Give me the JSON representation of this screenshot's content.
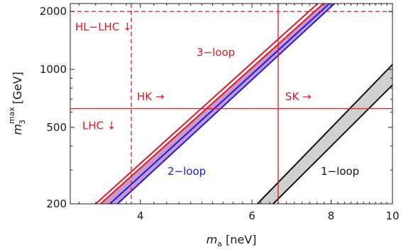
{
  "chart_data": {
    "type": "area",
    "title": "",
    "xlabel": {
      "var": "m",
      "sub": "a",
      "unit": "[neV]"
    },
    "ylabel": {
      "var": "m",
      "sub": "3",
      "sup": "max",
      "unit": "[GeV]"
    },
    "x_scale": "log",
    "y_scale": "log",
    "xlim": [
      3.1,
      10
    ],
    "ylim": [
      200,
      2200
    ],
    "xticks": [
      4,
      6,
      8,
      10
    ],
    "xtick_labels": [
      "4",
      "6",
      "8",
      "10"
    ],
    "yticks": [
      200,
      500,
      1000,
      2000
    ],
    "ytick_labels": [
      "200",
      "500",
      "1000",
      "2000"
    ],
    "bands": [
      {
        "name": "3-loop / 2-loop",
        "fill": "#c79ac9",
        "upper": {
          "label": "3−loop",
          "color": "#e8141f",
          "x": [
            3.46,
            7.78
          ],
          "y": [
            200,
            2200
          ]
        },
        "lower": {
          "label": "2−loop",
          "color": "#1a1aee",
          "x": [
            3.68,
            8.1
          ],
          "y": [
            200,
            2200
          ]
        },
        "outer_upper_color": "#e8141f",
        "outer_upper": {
          "x": [
            3.4,
            7.62
          ],
          "y": [
            200,
            2200
          ]
        },
        "outer_lower_color": "#1a1aee",
        "outer_lower": {
          "x": [
            3.58,
            7.95
          ],
          "y": [
            200,
            2200
          ]
        }
      },
      {
        "name": "1-loop",
        "fill": "#d0d0d0",
        "upper": {
          "label": "1−loop",
          "color": "#111111",
          "x": [
            6.12,
            10.0
          ],
          "y": [
            200,
            1060
          ]
        },
        "lower": {
          "label": "",
          "color": "#111111",
          "x": [
            6.48,
            10.0
          ],
          "y": [
            200,
            830
          ]
        }
      }
    ],
    "reference_lines": [
      {
        "label": "HL−LHC ↓",
        "orientation": "horizontal",
        "value": 2000,
        "style": "dashed",
        "color": "#e8141f"
      },
      {
        "label": "LHC ↓",
        "orientation": "horizontal",
        "value": 625,
        "style": "solid",
        "color": "#e8141f"
      },
      {
        "label": "HK →",
        "orientation": "vertical",
        "value": 3.87,
        "style": "dashed",
        "color": "#e8141f"
      },
      {
        "label": "SK →",
        "orientation": "vertical",
        "value": 6.6,
        "style": "solid",
        "color": "#e8141f"
      }
    ],
    "grid": false
  }
}
